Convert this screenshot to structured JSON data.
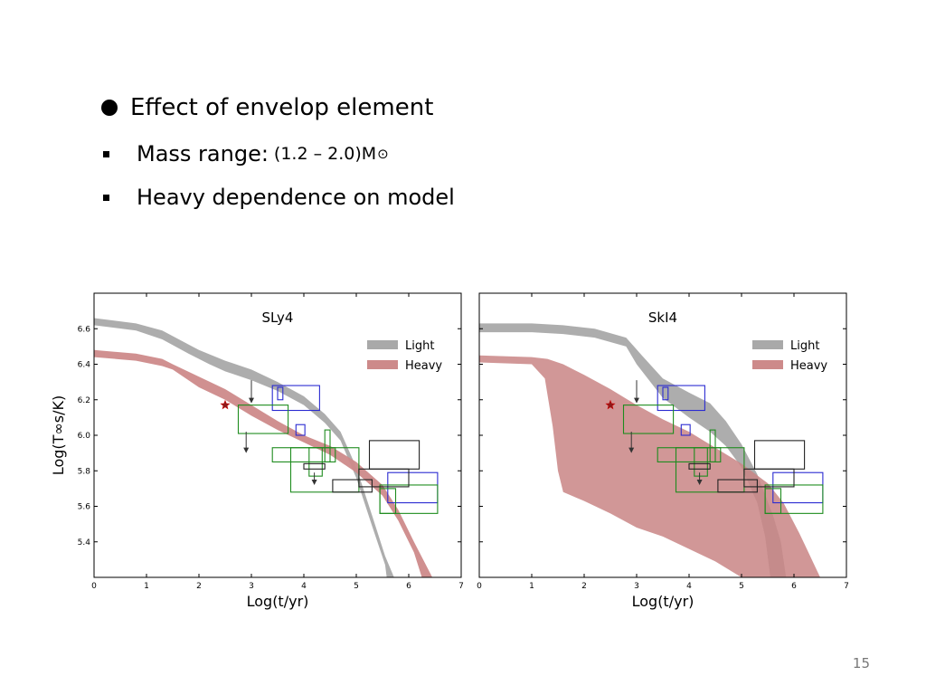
{
  "slide": {
    "bullets": [
      {
        "text": "Effect of envelop element"
      },
      {
        "text": "Mass range:",
        "detail": "(1.2 – 2.0)M",
        "symbol": "⊙"
      },
      {
        "text": "Heavy dependence on model"
      }
    ],
    "page_number": "15"
  },
  "chart_data": [
    {
      "type": "area",
      "title": "SLy4",
      "xlabel": "Log(t/yr)",
      "ylabel": "Log(T∞s/K)",
      "xlim": [
        0,
        7
      ],
      "ylim": [
        5.2,
        6.8
      ],
      "xticks": [
        "0",
        "1",
        "2",
        "3",
        "4",
        "5",
        "6",
        "7"
      ],
      "yticks": [
        "5.4",
        "5.6",
        "5.8",
        "6.0",
        "6.2",
        "6.4",
        "6.6"
      ],
      "legend": {
        "placement": "top-right",
        "entries": [
          {
            "name": "Light",
            "color": "#a9a9a9"
          },
          {
            "name": "Heavy",
            "color": "#cd8a8a"
          }
        ]
      },
      "series": [
        {
          "name": "Light",
          "color": "#a9a9a9",
          "upper": [
            [
              0,
              6.66
            ],
            [
              0.8,
              6.63
            ],
            [
              1.3,
              6.59
            ],
            [
              2.0,
              6.48
            ],
            [
              2.5,
              6.42
            ],
            [
              3.0,
              6.37
            ],
            [
              3.5,
              6.3
            ],
            [
              4.0,
              6.22
            ],
            [
              4.4,
              6.12
            ],
            [
              4.7,
              6.02
            ],
            [
              5.0,
              5.82
            ],
            [
              5.3,
              5.55
            ],
            [
              5.55,
              5.32
            ],
            [
              5.72,
              5.2
            ]
          ],
          "lower": [
            [
              0,
              6.62
            ],
            [
              0.8,
              6.59
            ],
            [
              1.3,
              6.54
            ],
            [
              1.8,
              6.46
            ],
            [
              2.2,
              6.4
            ],
            [
              2.5,
              6.36
            ],
            [
              3.0,
              6.31
            ],
            [
              3.5,
              6.25
            ],
            [
              4.0,
              6.17
            ],
            [
              4.4,
              6.07
            ],
            [
              4.7,
              5.97
            ],
            [
              5.0,
              5.76
            ],
            [
              5.3,
              5.49
            ],
            [
              5.55,
              5.27
            ],
            [
              5.58,
              5.2
            ]
          ]
        },
        {
          "name": "Heavy",
          "color": "#cd8a8a",
          "upper": [
            [
              0,
              6.48
            ],
            [
              0.8,
              6.46
            ],
            [
              1.3,
              6.43
            ],
            [
              1.5,
              6.4
            ],
            [
              2.0,
              6.33
            ],
            [
              2.5,
              6.26
            ],
            [
              3.0,
              6.17
            ],
            [
              3.5,
              6.08
            ],
            [
              4.0,
              6.0
            ],
            [
              4.5,
              5.94
            ],
            [
              5.0,
              5.85
            ],
            [
              5.5,
              5.72
            ],
            [
              5.8,
              5.58
            ],
            [
              6.1,
              5.4
            ],
            [
              6.45,
              5.2
            ]
          ],
          "lower": [
            [
              0,
              6.44
            ],
            [
              0.8,
              6.42
            ],
            [
              1.3,
              6.39
            ],
            [
              1.5,
              6.37
            ],
            [
              2.0,
              6.27
            ],
            [
              2.5,
              6.2
            ],
            [
              3.0,
              6.11
            ],
            [
              3.5,
              6.03
            ],
            [
              4.0,
              5.96
            ],
            [
              4.5,
              5.89
            ],
            [
              5.0,
              5.79
            ],
            [
              5.5,
              5.66
            ],
            [
              5.8,
              5.52
            ],
            [
              6.1,
              5.34
            ],
            [
              6.25,
              5.2
            ]
          ]
        }
      ],
      "points": [
        {
          "x": 2.5,
          "y": 6.17,
          "marker": "star",
          "color": "#cc0000"
        }
      ],
      "boxes": [
        {
          "x0": 3.4,
          "x1": 4.3,
          "y0": 6.14,
          "y1": 6.28,
          "color": "#2b2bd1"
        },
        {
          "x0": 3.5,
          "x1": 3.6,
          "y0": 6.2,
          "y1": 6.27,
          "color": "#2b2bd1"
        },
        {
          "x0": 3.85,
          "x1": 4.02,
          "y0": 6.0,
          "y1": 6.06,
          "color": "#2b2bd1"
        },
        {
          "x0": 5.6,
          "x1": 6.55,
          "y0": 5.62,
          "y1": 5.79,
          "color": "#2b2bd1"
        },
        {
          "x0": 2.75,
          "x1": 3.7,
          "y0": 6.01,
          "y1": 6.17,
          "color": "#1e8c1e"
        },
        {
          "x0": 3.4,
          "x1": 4.6,
          "y0": 5.85,
          "y1": 5.93,
          "color": "#1e8c1e"
        },
        {
          "x0": 3.75,
          "x1": 5.05,
          "y0": 5.68,
          "y1": 5.93,
          "color": "#1e8c1e"
        },
        {
          "x0": 4.1,
          "x1": 4.35,
          "y0": 5.77,
          "y1": 5.93,
          "color": "#1e8c1e"
        },
        {
          "x0": 4.4,
          "x1": 4.5,
          "y0": 5.85,
          "y1": 6.03,
          "color": "#1e8c1e"
        },
        {
          "x0": 5.45,
          "x1": 6.55,
          "y0": 5.56,
          "y1": 5.72,
          "color": "#1e8c1e"
        },
        {
          "x0": 5.45,
          "x1": 5.75,
          "y0": 5.56,
          "y1": 5.7,
          "color": "#1e8c1e"
        },
        {
          "x0": 5.25,
          "x1": 6.2,
          "y0": 5.81,
          "y1": 5.97,
          "color": "#222222"
        },
        {
          "x0": 5.05,
          "x1": 6.0,
          "y0": 5.71,
          "y1": 5.81,
          "color": "#222222"
        },
        {
          "x0": 4.55,
          "x1": 5.3,
          "y0": 5.68,
          "y1": 5.75,
          "color": "#222222"
        },
        {
          "x0": 4.0,
          "x1": 4.4,
          "y0": 5.81,
          "y1": 5.84,
          "color": "#222222"
        }
      ],
      "arrows": [
        {
          "x": 3.0,
          "y_from": 6.31,
          "y_to": 6.18,
          "color": "#333333"
        },
        {
          "x": 2.9,
          "y_from": 6.02,
          "y_to": 5.9,
          "color": "#333333"
        },
        {
          "x": 4.2,
          "y_from": 5.79,
          "y_to": 5.72,
          "color": "#333333"
        }
      ]
    },
    {
      "type": "area",
      "title": "SkI4",
      "xlabel": "Log(t/yr)",
      "ylabel": "",
      "xlim": [
        0,
        7
      ],
      "ylim": [
        5.2,
        6.8
      ],
      "xticks": [
        "0",
        "1",
        "2",
        "3",
        "4",
        "5",
        "6",
        "7"
      ],
      "yticks": [],
      "legend": {
        "placement": "top-right",
        "entries": [
          {
            "name": "Light",
            "color": "#a9a9a9"
          },
          {
            "name": "Heavy",
            "color": "#cd8a8a"
          }
        ]
      },
      "series": [
        {
          "name": "Light",
          "color": "#a9a9a9",
          "upper": [
            [
              0,
              6.63
            ],
            [
              1.0,
              6.63
            ],
            [
              1.6,
              6.62
            ],
            [
              2.2,
              6.6
            ],
            [
              2.8,
              6.55
            ],
            [
              3.1,
              6.45
            ],
            [
              3.5,
              6.32
            ],
            [
              4.0,
              6.24
            ],
            [
              4.4,
              6.18
            ],
            [
              4.7,
              6.08
            ],
            [
              5.0,
              5.95
            ],
            [
              5.3,
              5.78
            ],
            [
              5.6,
              5.55
            ],
            [
              5.75,
              5.4
            ],
            [
              5.85,
              5.2
            ]
          ],
          "lower": [
            [
              0,
              6.58
            ],
            [
              1.0,
              6.58
            ],
            [
              1.6,
              6.57
            ],
            [
              2.2,
              6.55
            ],
            [
              2.8,
              6.5
            ],
            [
              3.0,
              6.4
            ],
            [
              3.5,
              6.21
            ],
            [
              4.0,
              6.1
            ],
            [
              4.4,
              6.02
            ],
            [
              4.7,
              5.94
            ],
            [
              5.0,
              5.82
            ],
            [
              5.3,
              5.62
            ],
            [
              5.45,
              5.43
            ],
            [
              5.55,
              5.2
            ]
          ]
        },
        {
          "name": "Heavy",
          "color": "#c98585",
          "upper": [
            [
              0,
              6.45
            ],
            [
              1.0,
              6.44
            ],
            [
              1.3,
              6.43
            ],
            [
              1.6,
              6.4
            ],
            [
              2.0,
              6.34
            ],
            [
              2.5,
              6.26
            ],
            [
              3.0,
              6.17
            ],
            [
              3.5,
              6.09
            ],
            [
              4.0,
              6.02
            ],
            [
              4.5,
              5.93
            ],
            [
              5.0,
              5.84
            ],
            [
              5.5,
              5.73
            ],
            [
              5.8,
              5.62
            ],
            [
              6.1,
              5.45
            ],
            [
              6.5,
              5.2
            ]
          ],
          "lower": [
            [
              0,
              6.41
            ],
            [
              1.0,
              6.4
            ],
            [
              1.25,
              6.32
            ],
            [
              1.4,
              6.05
            ],
            [
              1.5,
              5.8
            ],
            [
              1.6,
              5.68
            ],
            [
              2.0,
              5.63
            ],
            [
              2.5,
              5.56
            ],
            [
              3.0,
              5.48
            ],
            [
              3.5,
              5.43
            ],
            [
              4.0,
              5.36
            ],
            [
              4.5,
              5.29
            ],
            [
              5.0,
              5.2
            ]
          ]
        }
      ],
      "points": [
        {
          "x": 2.5,
          "y": 6.17,
          "marker": "star",
          "color": "#cc0000"
        }
      ],
      "boxes": [
        {
          "x0": 3.4,
          "x1": 4.3,
          "y0": 6.14,
          "y1": 6.28,
          "color": "#2b2bd1"
        },
        {
          "x0": 3.5,
          "x1": 3.6,
          "y0": 6.2,
          "y1": 6.27,
          "color": "#2b2bd1"
        },
        {
          "x0": 3.85,
          "x1": 4.02,
          "y0": 6.0,
          "y1": 6.06,
          "color": "#2b2bd1"
        },
        {
          "x0": 5.6,
          "x1": 6.55,
          "y0": 5.62,
          "y1": 5.79,
          "color": "#2b2bd1"
        },
        {
          "x0": 2.75,
          "x1": 3.7,
          "y0": 6.01,
          "y1": 6.17,
          "color": "#1e8c1e"
        },
        {
          "x0": 3.4,
          "x1": 4.6,
          "y0": 5.85,
          "y1": 5.93,
          "color": "#1e8c1e"
        },
        {
          "x0": 3.75,
          "x1": 5.05,
          "y0": 5.68,
          "y1": 5.93,
          "color": "#1e8c1e"
        },
        {
          "x0": 4.1,
          "x1": 4.35,
          "y0": 5.77,
          "y1": 5.93,
          "color": "#1e8c1e"
        },
        {
          "x0": 4.4,
          "x1": 4.5,
          "y0": 5.85,
          "y1": 6.03,
          "color": "#1e8c1e"
        },
        {
          "x0": 5.45,
          "x1": 6.55,
          "y0": 5.56,
          "y1": 5.72,
          "color": "#1e8c1e"
        },
        {
          "x0": 5.45,
          "x1": 5.75,
          "y0": 5.56,
          "y1": 5.7,
          "color": "#1e8c1e"
        },
        {
          "x0": 5.25,
          "x1": 6.2,
          "y0": 5.81,
          "y1": 5.97,
          "color": "#222222"
        },
        {
          "x0": 5.05,
          "x1": 6.0,
          "y0": 5.71,
          "y1": 5.81,
          "color": "#222222"
        },
        {
          "x0": 4.55,
          "x1": 5.3,
          "y0": 5.68,
          "y1": 5.75,
          "color": "#222222"
        },
        {
          "x0": 4.0,
          "x1": 4.4,
          "y0": 5.81,
          "y1": 5.84,
          "color": "#222222"
        }
      ],
      "arrows": [
        {
          "x": 3.0,
          "y_from": 6.31,
          "y_to": 6.18,
          "color": "#333333"
        },
        {
          "x": 2.9,
          "y_from": 6.02,
          "y_to": 5.9,
          "color": "#333333"
        },
        {
          "x": 4.2,
          "y_from": 5.79,
          "y_to": 5.72,
          "color": "#333333"
        }
      ]
    }
  ]
}
